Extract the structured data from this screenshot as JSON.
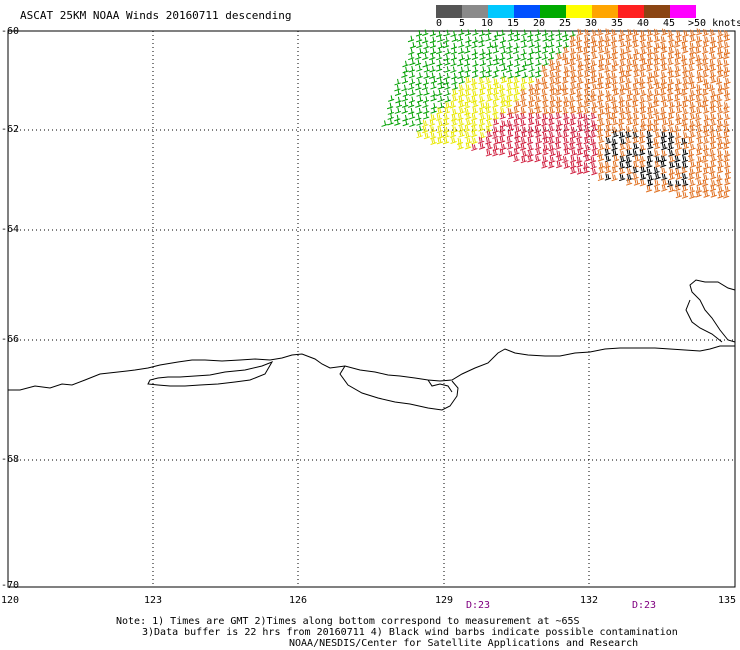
{
  "header": {
    "title": "ASCAT 25KM NOAA Winds 20160711 descending"
  },
  "legend": {
    "labels": [
      "0",
      "5",
      "10",
      "15",
      "20",
      "25",
      "30",
      "35",
      "40",
      "45",
      ">50 knots"
    ],
    "colors": [
      "#555555",
      "#8a8a8a",
      "#00c8ff",
      "#0050ff",
      "#00aa00",
      "#ffff00",
      "#ffa500",
      "#ff2020",
      "#8b4513",
      "#ff00ff",
      "#5a008a"
    ]
  },
  "axes": {
    "lat_labels": [
      "-60",
      "-62",
      "-64",
      "-66",
      "-68",
      "-70"
    ],
    "lon_labels": [
      "120",
      "123",
      "126",
      "129",
      "132",
      "135"
    ]
  },
  "pass_times": [
    "D:23",
    "D:23"
  ],
  "notes": [
    "Note: 1) Times are GMT 2)Times along bottom correspond to measurement at ~65S",
    "3)Data buffer is 22 hrs from 20160711 4) Black wind barbs indicate possible contamination",
    "NOAA/NESDIS/Center for Satellite Applications and Research"
  ],
  "colors": {
    "wind_green": "#00a000",
    "wind_yellow": "#e8e800",
    "wind_orange": "#e07020",
    "wind_red": "#d02040",
    "wind_black": "#000000",
    "time_label": "#800080"
  }
}
